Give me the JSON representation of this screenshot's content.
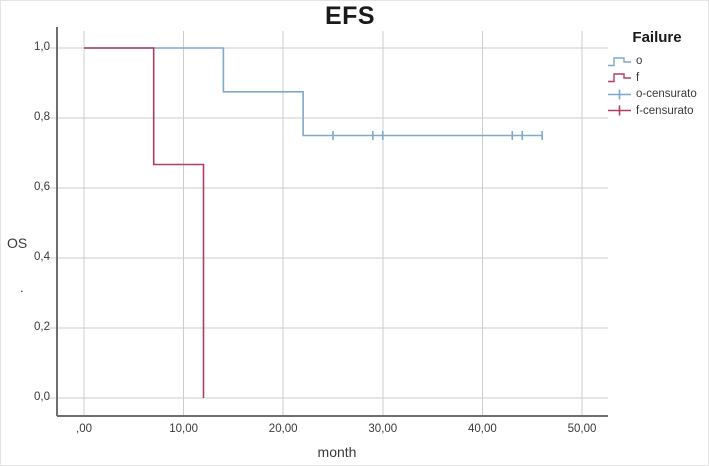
{
  "figure": {
    "title": "EFS",
    "xlabel": "month",
    "ylabel": "OS",
    "ylabel_dot": "."
  },
  "legend": {
    "title": "Failure",
    "items": [
      {
        "label": "o",
        "symbol": "step-line",
        "color": "#7FA8CE"
      },
      {
        "label": "f",
        "symbol": "step-line",
        "color": "#AF3E63"
      },
      {
        "label": "o-censurato",
        "symbol": "censor-plus",
        "color": "#7FA8CE"
      },
      {
        "label": "f-censurato",
        "symbol": "censor-plus",
        "color": "#AF3E63"
      }
    ]
  },
  "chart_data": {
    "type": "line",
    "subtype": "kaplan_meier_step",
    "title": "EFS",
    "xlabel": "month",
    "ylabel": "OS",
    "xlim": [
      -2.7,
      52.6
    ],
    "ylim": [
      -0.05,
      1.05
    ],
    "grid": true,
    "legend_position": "right",
    "legend_title": "Failure",
    "x_ticks": {
      "values": [
        0,
        10,
        20,
        30,
        40,
        50
      ],
      "labels": [
        ",00",
        "10,00",
        "20,00",
        "30,00",
        "40,00",
        "50,00"
      ]
    },
    "y_ticks": {
      "values": [
        0,
        0.2,
        0.4,
        0.6,
        0.8,
        1.0
      ],
      "labels": [
        "0,0",
        "0,2",
        "0,4",
        "0,6",
        "0,8",
        "1,0"
      ]
    },
    "series": [
      {
        "name": "o",
        "color": "#7FA8CE",
        "steps": [
          [
            0,
            1.0
          ],
          [
            14,
            1.0
          ],
          [
            14,
            0.875
          ],
          [
            22,
            0.875
          ],
          [
            22,
            0.75
          ],
          [
            46,
            0.75
          ]
        ],
        "censored": [
          [
            25,
            0.75
          ],
          [
            29,
            0.75
          ],
          [
            30,
            0.75
          ],
          [
            43,
            0.75
          ],
          [
            44,
            0.75
          ],
          [
            46,
            0.75
          ]
        ]
      },
      {
        "name": "f",
        "color": "#AF3E63",
        "steps": [
          [
            0,
            1.0
          ],
          [
            7,
            1.0
          ],
          [
            7,
            0.667
          ],
          [
            12,
            0.667
          ],
          [
            12,
            0.0
          ]
        ],
        "censored": []
      }
    ]
  }
}
